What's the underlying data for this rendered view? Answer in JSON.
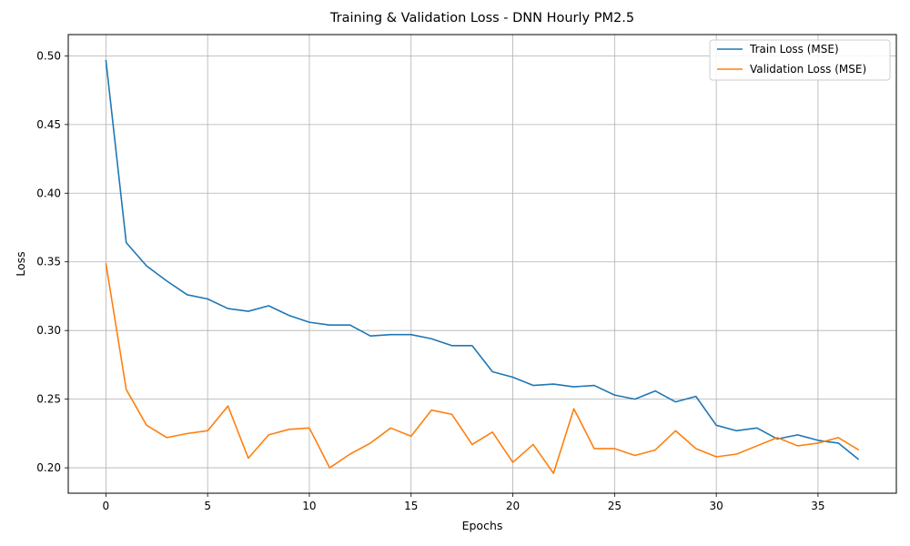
{
  "chart_data": {
    "type": "line",
    "title": "Training & Validation Loss - DNN Hourly PM2.5",
    "xlabel": "Epochs",
    "ylabel": "Loss",
    "xlim": [
      -1.85,
      38.85
    ],
    "ylim": [
      0.1815,
      0.5155
    ],
    "xticks": [
      0,
      5,
      10,
      15,
      20,
      25,
      30,
      35
    ],
    "xtick_labels": [
      "0",
      "5",
      "10",
      "15",
      "20",
      "25",
      "30",
      "35"
    ],
    "yticks": [
      0.2,
      0.25,
      0.3,
      0.35,
      0.4,
      0.45,
      0.5
    ],
    "ytick_labels": [
      "0.20",
      "0.25",
      "0.30",
      "0.35",
      "0.40",
      "0.45",
      "0.50"
    ],
    "grid": true,
    "legend_position": "top-right",
    "x": [
      0,
      1,
      2,
      3,
      4,
      5,
      6,
      7,
      8,
      9,
      10,
      11,
      12,
      13,
      14,
      15,
      16,
      17,
      18,
      19,
      20,
      21,
      22,
      23,
      24,
      25,
      26,
      27,
      28,
      29,
      30,
      31,
      32,
      33,
      34,
      35,
      36,
      37
    ],
    "series": [
      {
        "name": "Train Loss (MSE)",
        "color": "#1f77b4",
        "values": [
          0.497,
          0.364,
          0.347,
          0.336,
          0.326,
          0.323,
          0.316,
          0.314,
          0.318,
          0.311,
          0.306,
          0.304,
          0.304,
          0.296,
          0.297,
          0.297,
          0.294,
          0.289,
          0.289,
          0.27,
          0.266,
          0.26,
          0.261,
          0.259,
          0.26,
          0.253,
          0.25,
          0.256,
          0.248,
          0.252,
          0.231,
          0.227,
          0.229,
          0.221,
          0.224,
          0.22,
          0.218,
          0.206
        ]
      },
      {
        "name": "Validation Loss (MSE)",
        "color": "#ff7f0e",
        "values": [
          0.349,
          0.257,
          0.231,
          0.222,
          0.225,
          0.227,
          0.245,
          0.207,
          0.224,
          0.228,
          0.229,
          0.2,
          0.21,
          0.218,
          0.229,
          0.223,
          0.242,
          0.239,
          0.217,
          0.226,
          0.204,
          0.217,
          0.196,
          0.243,
          0.214,
          0.214,
          0.209,
          0.213,
          0.227,
          0.214,
          0.208,
          0.21,
          0.216,
          0.222,
          0.216,
          0.218,
          0.222,
          0.213
        ]
      }
    ]
  }
}
